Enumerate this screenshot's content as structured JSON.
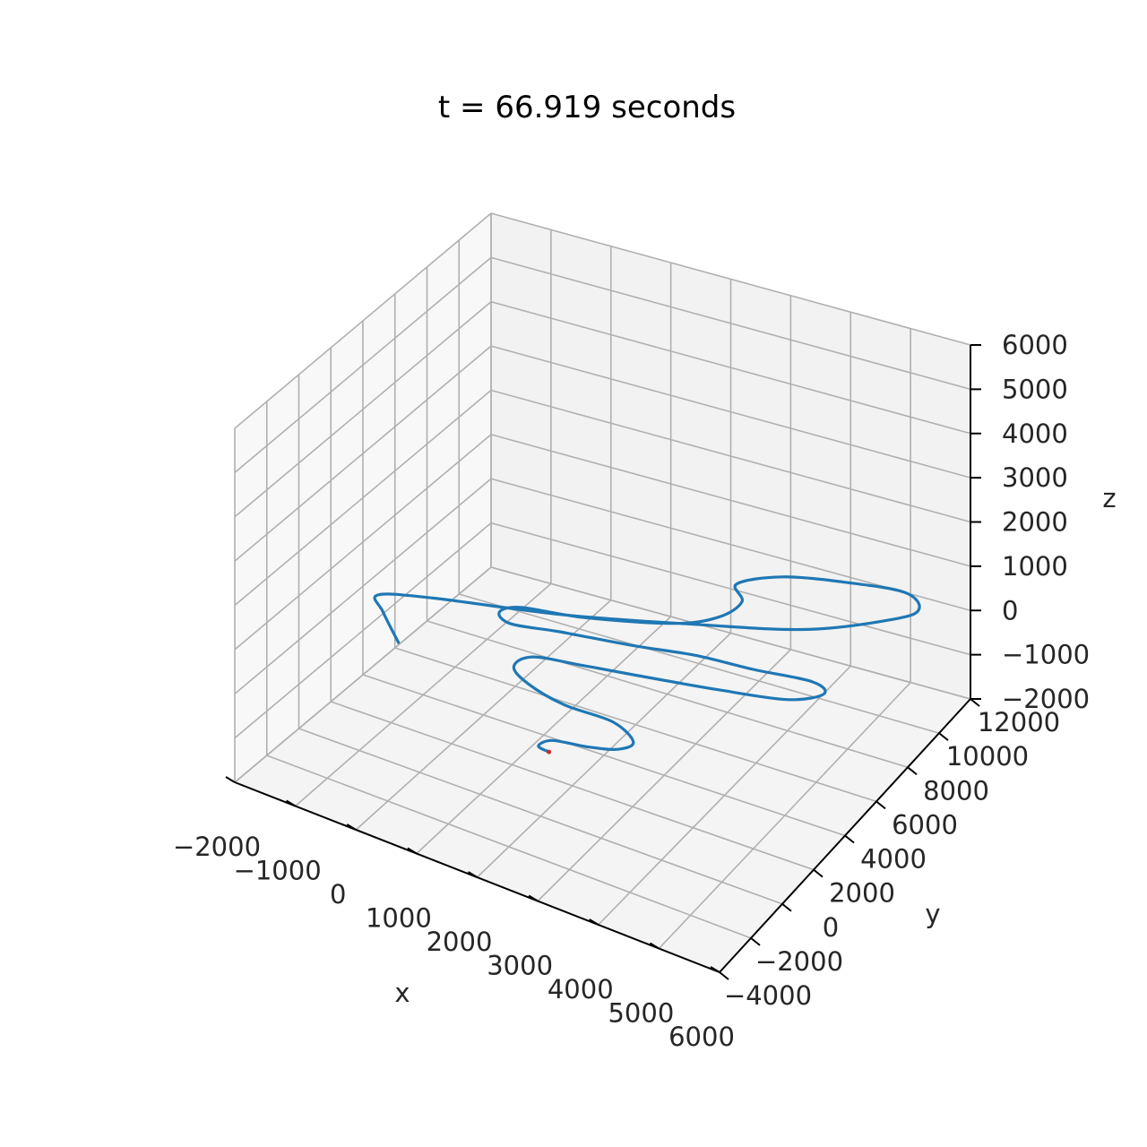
{
  "chart_data": {
    "type": "line",
    "projection": "3d",
    "title": "t = 66.919 seconds",
    "xlabel": "x",
    "ylabel": "y",
    "zlabel": "z",
    "xlim": [
      -2000,
      6000
    ],
    "ylim": [
      -4000,
      12000
    ],
    "zlim": [
      -2000,
      6000
    ],
    "xticks": [
      -2000,
      -1000,
      0,
      1000,
      2000,
      3000,
      4000,
      5000,
      6000
    ],
    "yticks": [
      -4000,
      -2000,
      0,
      2000,
      4000,
      6000,
      8000,
      10000,
      12000
    ],
    "zticks": [
      -2000,
      -1000,
      0,
      1000,
      2000,
      3000,
      4000,
      5000,
      6000
    ],
    "xtick_labels": [
      "−2000",
      "−1000",
      "0",
      "1000",
      "2000",
      "3000",
      "4000",
      "5000",
      "6000"
    ],
    "ytick_labels": [
      "−4000",
      "−2000",
      "0",
      "2000",
      "4000",
      "6000",
      "8000",
      "10000",
      "12000"
    ],
    "ztick_labels": [
      "−2000",
      "−1000",
      "0",
      "1000",
      "2000",
      "3000",
      "4000",
      "5000",
      "6000"
    ],
    "grid": true,
    "series": [
      {
        "color": "#1f77b4",
        "x": [
          2400,
          2200,
          2300,
          2800,
          3200,
          3300,
          2800,
          2000,
          1300,
          900,
          1000,
          1700,
          2500,
          3700,
          4700,
          5100,
          4800,
          3900,
          3000,
          2100,
          1000,
          300,
          0,
          200,
          1100,
          2300,
          2800,
          2900,
          2600,
          3100,
          4000,
          4900,
          5300,
          5100,
          4100,
          2600,
          800,
          -1000,
          -1700,
          -1400,
          -800
        ],
        "y": [
          -1000,
          -900,
          -400,
          -100,
          300,
          900,
          1500,
          1500,
          1900,
          2500,
          3300,
          3700,
          4100,
          4700,
          5300,
          6100,
          6500,
          6200,
          6000,
          5500,
          5000,
          4600,
          5000,
          5600,
          6100,
          7200,
          8200,
          9300,
          10100,
          11100,
          11700,
          12000,
          11400,
          10600,
          8900,
          7500,
          5900,
          4600,
          3800,
          3000,
          1700
        ],
        "z": [
          0,
          0,
          0,
          0,
          0,
          0,
          0,
          0,
          0,
          0,
          0,
          0,
          0,
          0,
          0,
          0,
          0,
          0,
          0,
          0,
          0,
          0,
          0,
          0,
          0,
          0,
          0,
          0,
          0,
          0,
          0,
          0,
          0,
          0,
          0,
          0,
          0,
          0,
          0,
          0,
          0
        ]
      }
    ],
    "marker": {
      "x": 2400,
      "y": -1000,
      "z": 0,
      "color": "#d62728"
    },
    "colors": {
      "pane": "#f2f2f2",
      "grid": "#b0b0b0",
      "axis": "#000000"
    }
  }
}
